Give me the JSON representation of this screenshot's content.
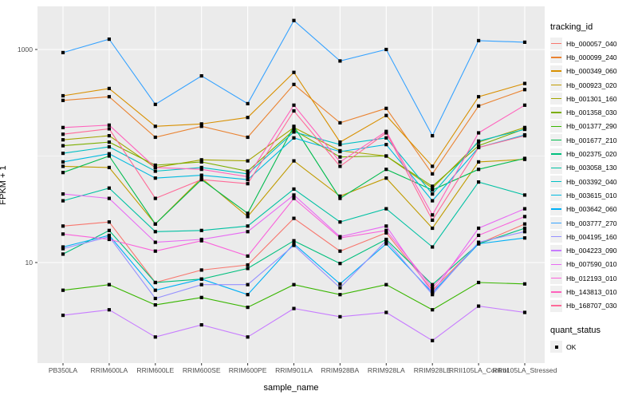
{
  "chart_data": {
    "type": "line",
    "title": "",
    "xlabel": "sample_name",
    "ylabel": "FPKM + 1",
    "y_scale": "log10",
    "y_tick_labels": [
      "1000",
      "10"
    ],
    "y_ticks": [
      1000,
      10
    ],
    "y_minor_ticks": [
      100
    ],
    "ylim": [
      1.1,
      2750
    ],
    "grid": true,
    "legend_position": "right",
    "legend_title": "tracking_id",
    "legend2_title": "quant_status",
    "legend2_items": [
      "OK"
    ],
    "panel_color": "#EBEBEB",
    "grid_color": "#FFFFFF",
    "tick_color": "#333333",
    "tick_label_color": "#4D4D4D",
    "point_color": "#000000",
    "categories": [
      "PB350LA",
      "RRIM600LA",
      "RRIM600LE",
      "RRIM600SE",
      "RRIM600PE",
      "RRIM901LA",
      "RRIM928BA",
      "RRIM928LA",
      "RRIM928LE",
      "RRII105LA_Control",
      "RRII105LA_Stressed"
    ],
    "series": [
      {
        "name": "Hb_000057_040",
        "color": "#F8766D",
        "values": [
          22,
          24,
          6.5,
          8.5,
          9.5,
          26,
          12.8,
          19,
          5.5,
          15,
          23
        ]
      },
      {
        "name": "Hb_000099_240",
        "color": "#EA8331",
        "values": [
          333,
          360,
          150,
          190,
          150,
          470,
          205,
          280,
          68,
          295,
          420
        ]
      },
      {
        "name": "Hb_000349_060",
        "color": "#D89000",
        "values": [
          368,
          430,
          190,
          200,
          230,
          610,
          135,
          240,
          80,
          360,
          480
        ]
      },
      {
        "name": "Hb_000923_020",
        "color": "#C09B00",
        "values": [
          80,
          78,
          23,
          62,
          27,
          90,
          42,
          62,
          21,
          88,
          93
        ]
      },
      {
        "name": "Hb_001301_160",
        "color": "#A3A500",
        "values": [
          142,
          155,
          78,
          92,
          90,
          185,
          112,
          100,
          50,
          135,
          185
        ]
      },
      {
        "name": "Hb_001358_030",
        "color": "#7CAE00",
        "values": [
          125,
          135,
          82,
          88,
          72,
          175,
          98,
          100,
          52,
          125,
          180
        ]
      },
      {
        "name": "Hb_001377_290",
        "color": "#39B600",
        "values": [
          5.5,
          6.2,
          4.0,
          4.7,
          3.8,
          6.2,
          5.0,
          6.2,
          3.6,
          6.5,
          6.3
        ]
      },
      {
        "name": "Hb_001677_210",
        "color": "#00BB4E",
        "values": [
          70,
          100,
          23,
          60,
          29,
          190,
          40,
          75,
          48,
          75,
          95
        ]
      },
      {
        "name": "Hb_002375_020",
        "color": "#00BF7D",
        "values": [
          12,
          20,
          6.5,
          7.0,
          8.8,
          16,
          9.8,
          16.5,
          6.2,
          15,
          21
        ]
      },
      {
        "name": "Hb_003058_130",
        "color": "#00C1A3",
        "values": [
          38,
          50,
          19.5,
          20,
          22,
          49,
          24,
          32,
          14,
          57,
          43
        ]
      },
      {
        "name": "Hb_003392_040",
        "color": "#00BFC4",
        "values": [
          106,
          122,
          72,
          78,
          68,
          168,
          128,
          148,
          44,
          138,
          178
        ]
      },
      {
        "name": "Hb_003615_010",
        "color": "#00BAE0",
        "values": [
          88,
          105,
          62,
          66,
          60,
          148,
          110,
          128,
          38,
          120,
          158
        ]
      },
      {
        "name": "Hb_003642_060",
        "color": "#00B0F6",
        "values": [
          14,
          18,
          5.5,
          7.0,
          5.0,
          15,
          6.3,
          15,
          5.2,
          15,
          17
        ]
      },
      {
        "name": "Hb_003777_270",
        "color": "#35A2FF",
        "values": [
          935,
          1250,
          305,
          565,
          310,
          1870,
          780,
          1000,
          155,
          1210,
          1170
        ]
      },
      {
        "name": "Hb_004195_160",
        "color": "#9590FF",
        "values": [
          13.5,
          17.5,
          4.6,
          6.2,
          6.2,
          14.5,
          5.8,
          16,
          5.0,
          15.5,
          19.5
        ]
      },
      {
        "name": "Hb_004223_090",
        "color": "#C77CFF",
        "values": [
          3.2,
          3.6,
          2.0,
          2.6,
          2.0,
          3.7,
          3.1,
          3.4,
          1.85,
          3.9,
          3.4
        ]
      },
      {
        "name": "Hb_007590_010",
        "color": "#E76BF3",
        "values": [
          44,
          40,
          15.5,
          16.5,
          19.5,
          43,
          17.5,
          22,
          5.2,
          21,
          32
        ]
      },
      {
        "name": "Hb_012193_010",
        "color": "#FA62DB",
        "values": [
          18.5,
          16.5,
          12.8,
          16,
          11.5,
          40,
          17,
          20,
          5.8,
          18,
          27
        ]
      },
      {
        "name": "Hb_143813_010",
        "color": "#FF62BC",
        "values": [
          185,
          195,
          78,
          75,
          64,
          300,
          88,
          170,
          28,
          165,
          300
        ]
      },
      {
        "name": "Hb_168707_030",
        "color": "#FF6A98",
        "values": [
          160,
          180,
          40,
          60,
          55,
          265,
          80,
          165,
          25,
          120,
          155
        ]
      }
    ]
  }
}
